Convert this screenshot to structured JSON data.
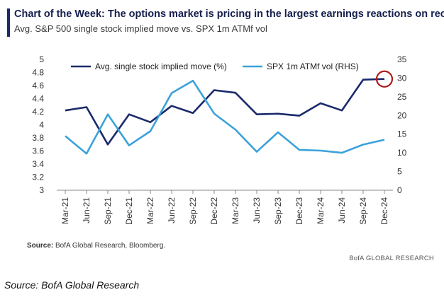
{
  "header": {
    "title": "Chart of the Week: The options market is pricing in the largest earnings reactions on record",
    "subtitle": "Avg. S&P 500 single stock implied move vs. SPX 1m ATMf vol"
  },
  "footer": {
    "source_label": "Source:",
    "source_text": " BofA Global Research, Bloomberg.",
    "brand": "BofA GLOBAL RESEARCH",
    "caption": "Source: BofA Global Research"
  },
  "colors": {
    "series1": "#1b2a6b",
    "series2": "#3ba2d9",
    "highlight": "#b01c1c",
    "axis": "#888888"
  },
  "chart_data": {
    "type": "line",
    "x": [
      "Mar-21",
      "Jun-21",
      "Sep-21",
      "Dec-21",
      "Mar-22",
      "Jun-22",
      "Sep-22",
      "Dec-22",
      "Mar-23",
      "Jun-23",
      "Sep-23",
      "Dec-23",
      "Mar-24",
      "Jun-24",
      "Sep-24",
      "Dec-24"
    ],
    "series": [
      {
        "name": "Avg. single stock implied move (%)",
        "axis": "left",
        "values": [
          4.22,
          4.27,
          3.7,
          4.16,
          4.04,
          4.29,
          4.18,
          4.53,
          4.49,
          4.16,
          4.17,
          4.14,
          4.33,
          4.22,
          4.69,
          4.7
        ]
      },
      {
        "name": "SPX 1m ATMf vol (RHS)",
        "axis": "right",
        "values": [
          14.5,
          9.8,
          20.3,
          12.0,
          15.8,
          26.0,
          29.3,
          20.5,
          16.2,
          10.3,
          15.5,
          10.8,
          10.6,
          10.0,
          12.2,
          13.5
        ]
      }
    ],
    "ylim_left": [
      3,
      5
    ],
    "yticks_left": [
      "3",
      "3.2",
      "3.4",
      "3.6",
      "3.8",
      "4",
      "4.2",
      "4.4",
      "4.6",
      "4.8",
      "5"
    ],
    "ylim_right": [
      0,
      35
    ],
    "yticks_right": [
      "0",
      "5",
      "10",
      "15",
      "20",
      "25",
      "30",
      "35"
    ],
    "grid": false,
    "legend": "top",
    "annotation": "circle on last value of Avg. single stock implied move"
  }
}
